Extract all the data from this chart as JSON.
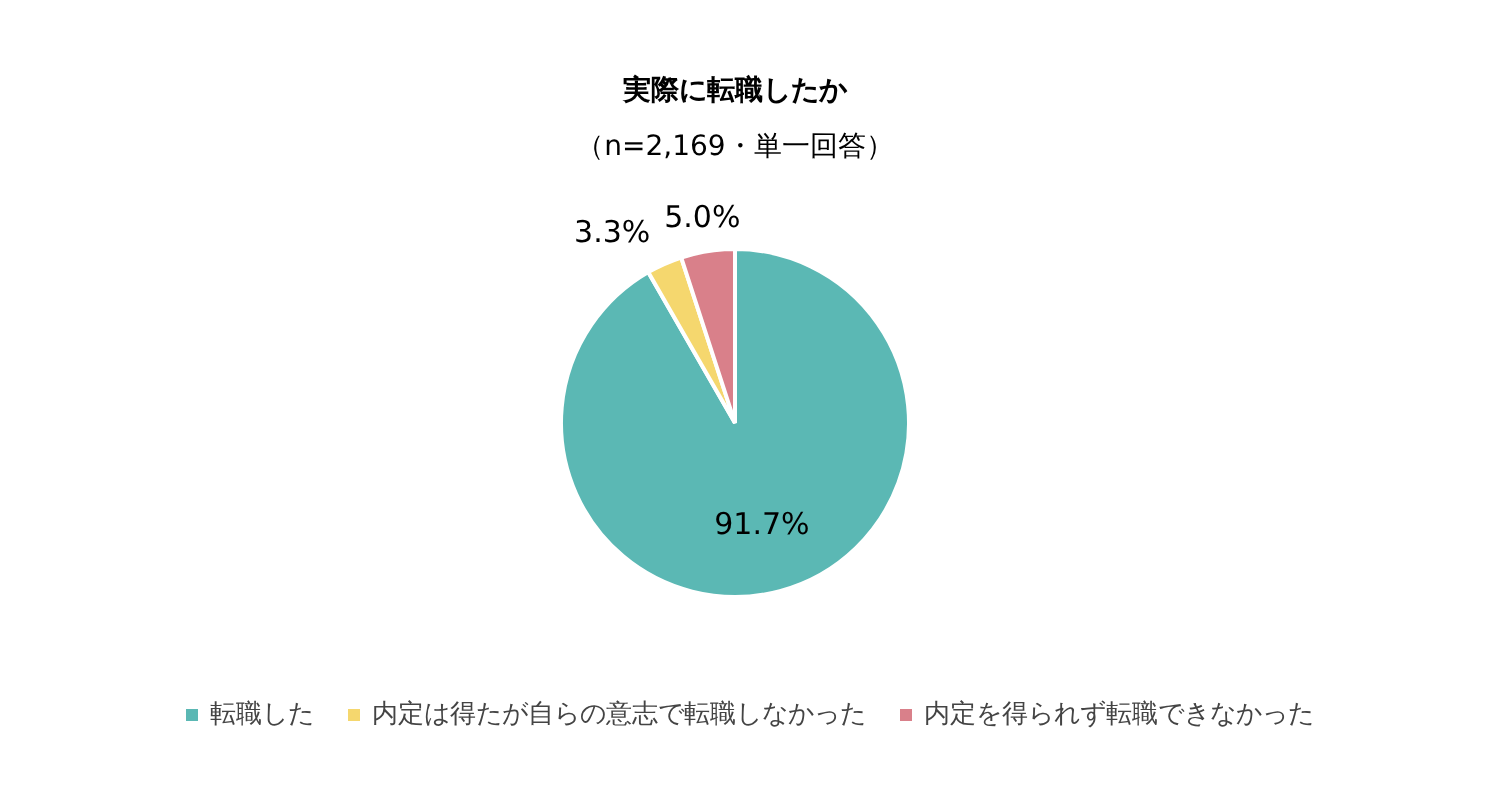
{
  "chart_data": {
    "type": "pie",
    "title": "実際に転職したか",
    "subtitle": "（n=2,169・単一回答）",
    "categories": [
      "転職した",
      "内定は得たが自らの意志で転職しなかった",
      "内定を得られず転職できなかった"
    ],
    "values": [
      91.7,
      3.3,
      5.0
    ],
    "colors": [
      "#5bb8b4",
      "#f5d76e",
      "#d9808a"
    ],
    "value_labels": [
      "91.7%",
      "3.3%",
      "5.0%"
    ],
    "legend": "bottom"
  }
}
